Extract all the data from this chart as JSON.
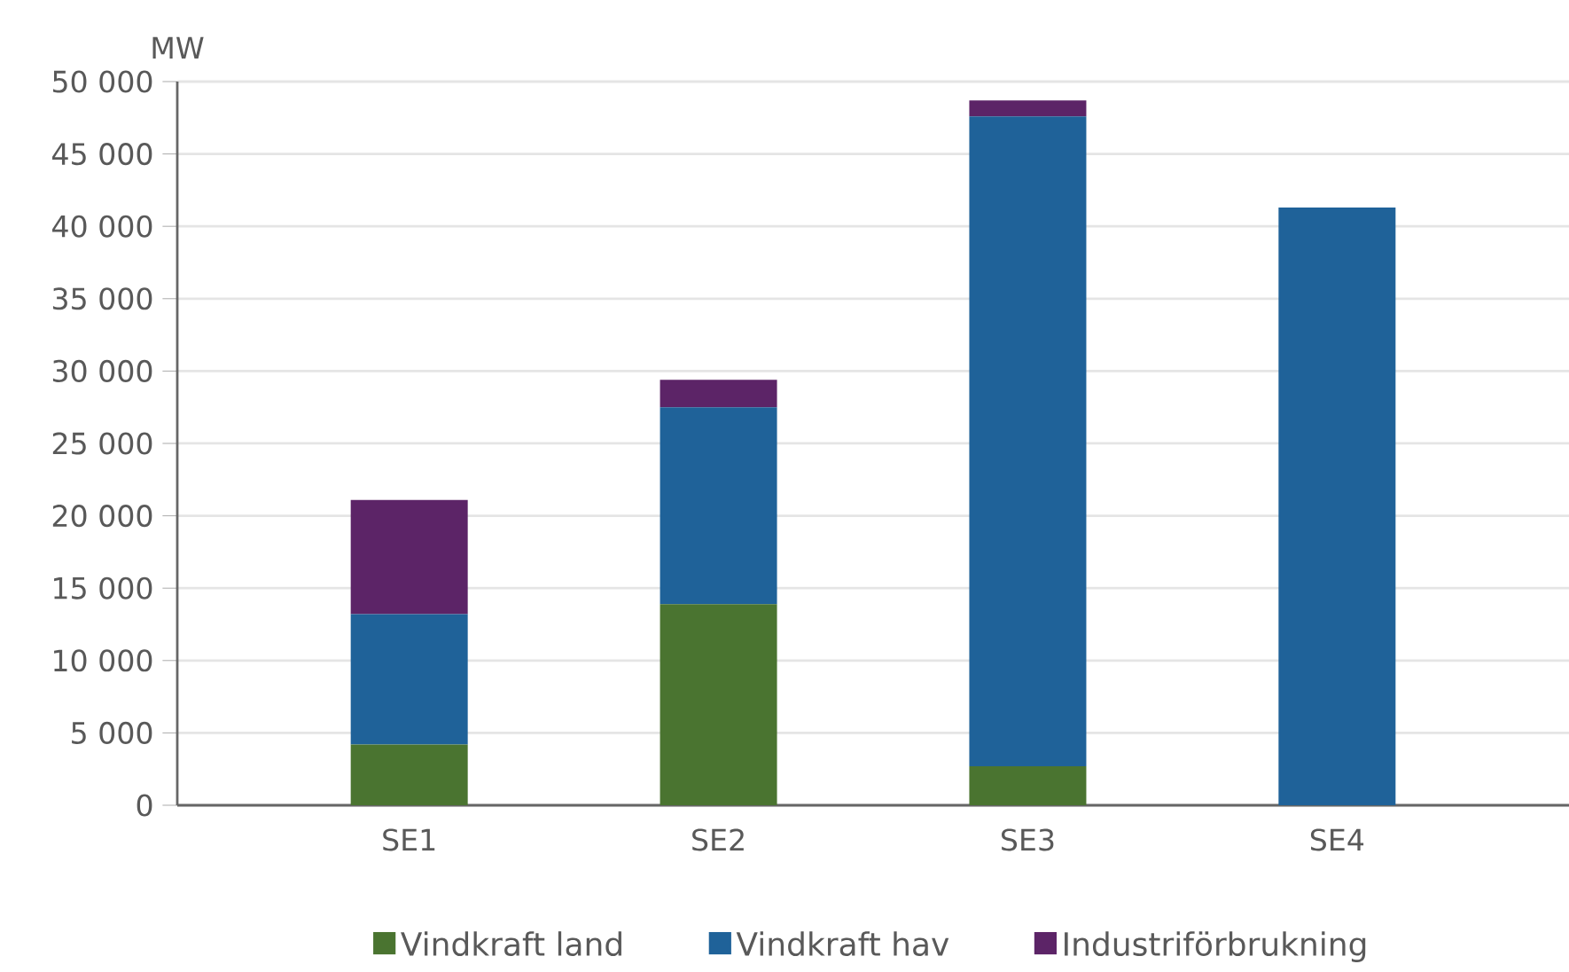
{
  "chart_data": {
    "type": "bar",
    "stacked": true,
    "ylabel": "MW",
    "categories": [
      "SE1",
      "SE2",
      "SE3",
      "SE4"
    ],
    "series": [
      {
        "name": "Vindkraft land",
        "color": "#4a7430",
        "values": [
          4200,
          13900,
          2700,
          0
        ]
      },
      {
        "name": "Vindkraft hav",
        "color": "#1f6299",
        "values": [
          9000,
          13600,
          44900,
          41300
        ]
      },
      {
        "name": "Industriförbrukning",
        "color": "#5c2467",
        "values": [
          7900,
          1900,
          1100,
          0
        ]
      }
    ],
    "ylim": [
      0,
      50000
    ],
    "yticks": [
      0,
      {
        "value": 5000,
        "label": "5 000"
      },
      {
        "value": 10000,
        "label": "10 000"
      },
      {
        "value": 15000,
        "label": "15 000"
      },
      {
        "value": 20000,
        "label": "20 000"
      },
      {
        "value": 25000,
        "label": "25 000"
      },
      {
        "value": 30000,
        "label": "30 000"
      },
      {
        "value": 35000,
        "label": "35 000"
      },
      {
        "value": 40000,
        "label": "40 000"
      },
      {
        "value": 45000,
        "label": "45 000"
      },
      {
        "value": 50000,
        "label": "50 000"
      }
    ],
    "grid": "y",
    "legend": "bottom"
  }
}
